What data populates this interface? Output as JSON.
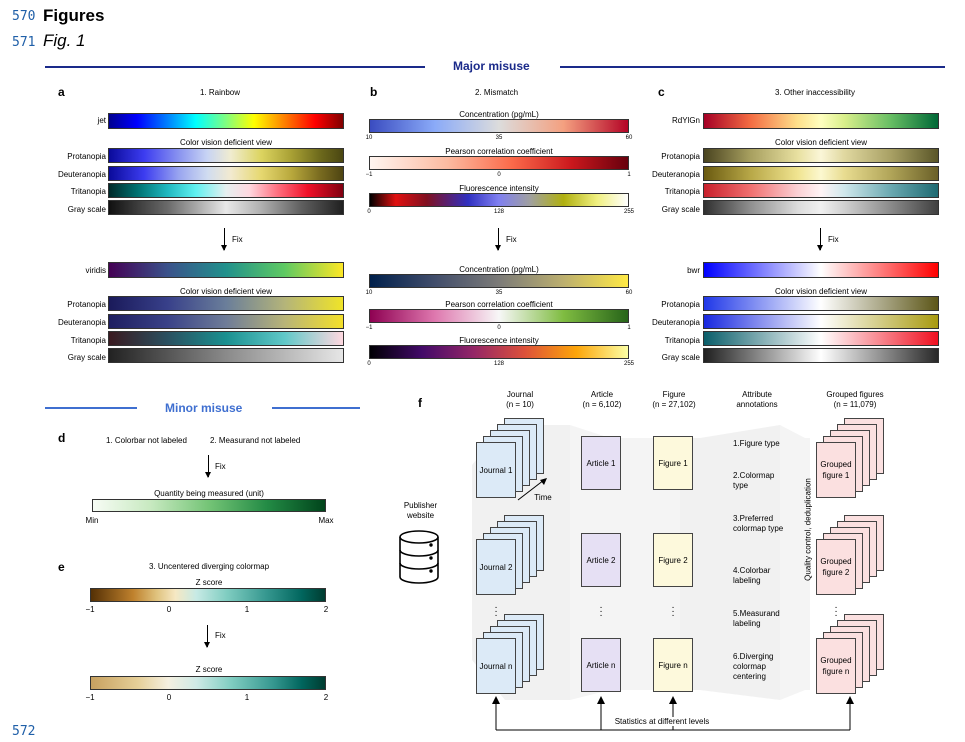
{
  "line_numbers": {
    "top1": "570",
    "top2": "571",
    "bottom": "572"
  },
  "heading": "Figures",
  "subheading": "Fig. 1",
  "sections": {
    "major": "Major misuse",
    "minor": "Minor misuse"
  },
  "panel_a": {
    "letter": "a",
    "title": "1. Rainbow",
    "top_map": "jet",
    "cvd_header": "Color vision deficient view",
    "rows": [
      "Protanopia",
      "Deuteranopia",
      "Tritanopia",
      "Gray scale"
    ],
    "fix": "Fix",
    "fixed_map": "viridis",
    "cvd_header2": "Color vision deficient view"
  },
  "panel_b": {
    "letter": "b",
    "title": "2. Mismatch",
    "bars": [
      {
        "title": "Concentration (pg/mL)",
        "ticks": [
          "10",
          "35",
          "60"
        ]
      },
      {
        "title": "Pearson correlation coefficient",
        "ticks": [
          "−1",
          "0",
          "1"
        ]
      },
      {
        "title": "Fluorescence intensity",
        "ticks": [
          "0",
          "128",
          "255"
        ]
      }
    ],
    "fix": "Fix",
    "fixed_bars": [
      {
        "title": "Concentration (pg/mL)",
        "ticks": [
          "10",
          "35",
          "60"
        ]
      },
      {
        "title": "Pearson correlation coefficient",
        "ticks": [
          "−1",
          "0",
          "1"
        ]
      },
      {
        "title": "Fluorescence intensity",
        "ticks": [
          "0",
          "128",
          "255"
        ]
      }
    ]
  },
  "panel_c": {
    "letter": "c",
    "title": "3. Other inaccessibility",
    "top_map": "RdYlGn",
    "cvd_header": "Color vision deficient view",
    "rows": [
      "Protanopia",
      "Deuteranopia",
      "Tritanopia",
      "Gray scale"
    ],
    "fix": "Fix",
    "fixed_map": "bwr",
    "cvd_header2": "Color vision deficient view"
  },
  "panel_d": {
    "letter": "d",
    "label1": "1. Colorbar not labeled",
    "label2": "2. Measurand not labeled",
    "fix": "Fix",
    "bar_title": "Quantity being measured (unit)",
    "min": "Min",
    "max": "Max"
  },
  "panel_e": {
    "letter": "e",
    "title": "3. Uncentered diverging colormap",
    "bar_title": "Z score",
    "ticks": [
      "−1",
      "0",
      "1",
      "2"
    ],
    "fix": "Fix",
    "bar_title2": "Z score",
    "ticks2": [
      "−1",
      "0",
      "1",
      "2"
    ]
  },
  "panel_f": {
    "letter": "f",
    "publisher": "Publisher website",
    "time": "Time",
    "columns": {
      "journal": {
        "name": "Journal",
        "n": "(n = 10)"
      },
      "article": {
        "name": "Article",
        "n": "(n = 6,102)"
      },
      "figure": {
        "name": "Figure",
        "n": "(n = 27,102)"
      },
      "attr": {
        "name": "Attribute annotations"
      },
      "grouped": {
        "name": "Grouped figures",
        "n": "(n = 11,079)"
      }
    },
    "journal_cards": [
      "Journal 1",
      "Journal 2",
      "Journal n"
    ],
    "article_cards": [
      "Article 1",
      "Article 2",
      "Article n"
    ],
    "figure_cards": [
      "Figure 1",
      "Figure 2",
      "Figure n"
    ],
    "grouped_cards": [
      "Grouped figure 1",
      "Grouped figure 2",
      "Grouped figure n"
    ],
    "attributes": [
      "1.Figure type",
      "2.Colormap type",
      "3.Preferred colormap type",
      "4.Colorbar labeling",
      "5.Measurand labeling",
      "6.Diverging colormap centering"
    ],
    "qc": "Quality control, deduplication",
    "stats": "Statistics at different levels"
  },
  "colors": {
    "major": "#1a2a8a",
    "minor": "#3f6fd0",
    "line_numbers": "#1f5fa8"
  }
}
